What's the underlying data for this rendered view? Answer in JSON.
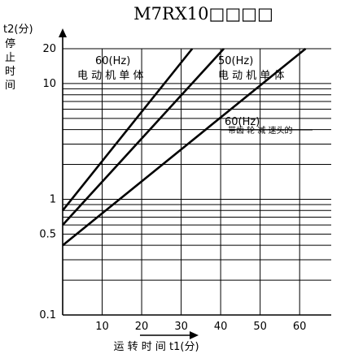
{
  "chart_data": {
    "type": "line",
    "title": "M7RX10□□□□",
    "xlabel": "运 转 时 间  t1(分)",
    "ylabel_symbol": "t2(分)",
    "ylabel_chars": [
      "停",
      "止",
      "时",
      "间"
    ],
    "x_scale": "linear",
    "y_scale": "log",
    "xlim": [
      0,
      68
    ],
    "ylim": [
      0.1,
      20
    ],
    "x_ticks": [
      10,
      20,
      30,
      40,
      50,
      60
    ],
    "y_tick_labels": [
      {
        "value": 20,
        "label": "20"
      },
      {
        "value": 10,
        "label": "10"
      },
      {
        "value": 1,
        "label": "1"
      },
      {
        "value": 0.5,
        "label": "0.5"
      },
      {
        "value": 0.1,
        "label": "0.1"
      }
    ],
    "grid": true,
    "series": [
      {
        "name": "60(Hz) 电动机单体",
        "x": [
          0,
          32.8
        ],
        "y": [
          0.8,
          20
        ]
      },
      {
        "name": "50(Hz) 电动机单体",
        "x": [
          0,
          40.8
        ],
        "y": [
          0.6,
          20
        ]
      },
      {
        "name": "60(Hz) 带齿轮减速头的",
        "x": [
          0,
          61.5
        ],
        "y": [
          0.4,
          20
        ]
      }
    ],
    "annotations": [
      {
        "id": "a1",
        "line1": "60(Hz)",
        "line2": "电 动 机 单 体"
      },
      {
        "id": "a2",
        "line1": "50(Hz)",
        "line2": "电 动 机 单 体"
      },
      {
        "id": "a3",
        "line1": "60(Hz)",
        "line2": "带齿 轮 减 速头的"
      }
    ]
  }
}
